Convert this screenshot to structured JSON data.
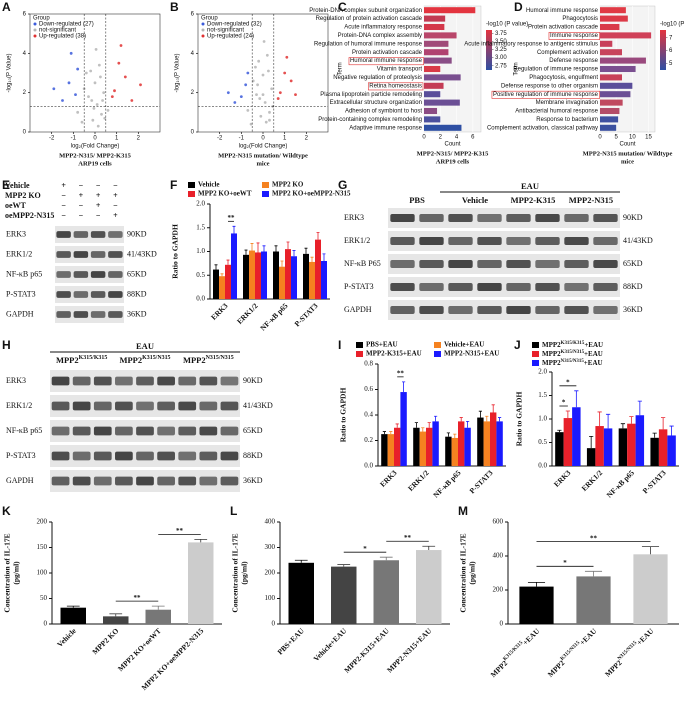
{
  "chart_data": [
    {
      "panel": "A",
      "type": "scatter",
      "caption": [
        "MPP2-N315/ MPP2-K315",
        "ARP19 cells"
      ],
      "xlabel": "log₂(Fold Change)",
      "ylabel": "-log₁₀(P Value)",
      "legend_title": "Group",
      "xlim": [
        -3,
        3
      ],
      "xticks": [
        -2,
        -1,
        0,
        1,
        2
      ],
      "ylim": [
        0,
        6
      ],
      "yticks": [
        0,
        2,
        4,
        6
      ],
      "thresholds": {
        "x": [
          -0.5,
          0.5
        ],
        "y": 1.3
      },
      "series": [
        {
          "name": "Down-regulated (27)",
          "color": "#3b5bdb",
          "x": [
            -1.2,
            -0.9,
            -1.5,
            -0.8,
            -1.1,
            -1.9
          ],
          "y": [
            2.5,
            1.9,
            1.6,
            3.2,
            4.0,
            2.2
          ]
        },
        {
          "name": "not-significant",
          "color": "#b5b5b5",
          "x": [
            -0.8,
            -0.5,
            -0.3,
            -0.2,
            -0.1,
            0,
            0.1,
            0.2,
            0.3,
            0.4,
            0.6,
            -0.6,
            0.05,
            -0.15,
            0.25,
            0.45,
            -0.4,
            0.15,
            -0.05,
            0.35
          ],
          "y": [
            1.0,
            2.2,
            1.8,
            3.1,
            0.6,
            2.5,
            1.4,
            3.4,
            0.9,
            2.0,
            1.1,
            0.5,
            4.2,
            1.6,
            2.8,
            0.7,
            3.0,
            0.3,
            1.2,
            1.6
          ]
        },
        {
          "name": "Up-regulated (38)",
          "color": "#e03131",
          "x": [
            0.9,
            1.1,
            1.4,
            0.8,
            1.7,
            1.2,
            2.1
          ],
          "y": [
            2.1,
            3.5,
            2.8,
            1.8,
            1.6,
            4.4,
            2.4
          ]
        }
      ]
    },
    {
      "panel": "B",
      "type": "scatter",
      "caption": [
        "MPP2-N315 mutation/ Wildtype",
        "mice"
      ],
      "xlabel": "log₂(Fold Change)",
      "ylabel": "-log₁₀(P Value)",
      "legend_title": "Group",
      "xlim": [
        -3,
        3
      ],
      "xticks": [
        -2,
        -1,
        0,
        1,
        2
      ],
      "ylim": [
        0,
        6
      ],
      "yticks": [
        0,
        2,
        4,
        6
      ],
      "thresholds": {
        "x": [
          -0.5,
          0.5
        ],
        "y": 1.3
      },
      "series": [
        {
          "name": "Down-regulated (32)",
          "color": "#3b5bdb",
          "x": [
            -1.0,
            -0.8,
            -1.3,
            -0.7,
            -1.6
          ],
          "y": [
            1.8,
            2.4,
            1.5,
            3.0,
            2.0
          ]
        },
        {
          "name": "not-significant",
          "color": "#b5b5b5",
          "x": [
            -0.7,
            -0.45,
            -0.3,
            -0.2,
            -0.1,
            0,
            0.1,
            0.2,
            0.3,
            0.4,
            -0.55,
            0.05,
            -0.15,
            0.25,
            -0.35,
            0.15,
            0.45,
            -0.25,
            0.0,
            0.3
          ],
          "y": [
            1.1,
            2.6,
            1.9,
            3.6,
            0.8,
            2.9,
            1.5,
            3.9,
            1.0,
            2.2,
            0.4,
            4.6,
            1.7,
            3.1,
            3.3,
            0.5,
            1.3,
            2.4,
            1.9,
            0.6
          ]
        },
        {
          "name": "Up-regulated (24)",
          "color": "#e03131",
          "x": [
            0.8,
            1.0,
            1.3,
            0.7,
            1.5,
            1.1
          ],
          "y": [
            2.0,
            3.0,
            2.6,
            1.7,
            1.9,
            3.8
          ]
        }
      ]
    },
    {
      "panel": "C",
      "type": "barh",
      "caption": [
        "MPP2-N315/ MPP2-K315",
        "ARP19 cells"
      ],
      "xlabel": "Count",
      "ylabel": "Term",
      "xlim": [
        0,
        7
      ],
      "xticks": [
        0,
        2,
        4,
        6
      ],
      "categories": [
        "Protein-DNA complex subunit organization",
        "Regulation of protein activation cascade",
        "Acute inflammatory response",
        "Protein-DNA complex assembly",
        "Regulation of humoral immune response",
        "Protein activation cascade",
        "Humoral immune response",
        "Vitamin transport",
        "Negative regulation of proteolysis",
        "Retina homeostasis",
        "Plasma lipoprotein particle remodeling",
        "Extracellular structure organization",
        "Adhesion of symbiont to host",
        "Protein-containing complex remodeling",
        "Adaptive immune response"
      ],
      "values": [
        6.3,
        2.6,
        2.5,
        4.0,
        3.0,
        3.0,
        3.4,
        2.0,
        4.5,
        2.4,
        2.0,
        4.4,
        1.6,
        2.0,
        4.6
      ],
      "colors": [
        "#e3343f",
        "#c23a52",
        "#d4374a",
        "#b9466a",
        "#a04a78",
        "#b04270",
        "#8a4d86",
        "#d93a47",
        "#7a4f90",
        "#c43c55",
        "#5a4e9a",
        "#6b4f95",
        "#8c4c84",
        "#4c509e",
        "#2e4fa3"
      ],
      "highlight": [
        6,
        9
      ],
      "colorbar": {
        "title": "-log10 (P value)",
        "clim": [
          2.62,
          3.85
        ],
        "colors": [
          "#2e4fa3",
          "#e3343f"
        ],
        "ticks": [
          {
            "value": 3.75,
            "label": "3.75"
          },
          {
            "value": 3.5,
            "label": "3.50"
          },
          3.25,
          {
            "value": 3,
            "label": "3.00"
          },
          2.75
        ]
      }
    },
    {
      "panel": "D",
      "type": "barh",
      "caption": [
        "MPP2-N315 mutation/ Wildtype",
        "mice"
      ],
      "xlabel": "Count",
      "ylabel": "Term",
      "xlim": [
        0,
        17
      ],
      "xticks": [
        0,
        5,
        10,
        15
      ],
      "categories": [
        "Humoral immune response",
        "Phagocytosis",
        "Protein activation cascade",
        "Immune response",
        "Acute inflammatory response to antigenic stimulus",
        "Complement activation",
        "Defense response",
        "Regulation of immune response",
        "Phagocytosis, engulfment",
        "Defense response to other organism",
        "Positive regulation of immune response",
        "Membrane invagination",
        "Antibacterial humoral response",
        "Response to bacterium",
        "Complement activation, classical pathway"
      ],
      "values": [
        8,
        8.6,
        6,
        15.8,
        3.8,
        6.8,
        14.2,
        11,
        6.8,
        10,
        9.4,
        7,
        6,
        5.6,
        5
      ],
      "colors": [
        "#e03a45",
        "#dc3a48",
        "#d93b4a",
        "#d04058",
        "#c8405a",
        "#c8445c",
        "#9a4a7e",
        "#7a4f90",
        "#c84058",
        "#5a4e9a",
        "#6b4f95",
        "#c04a60",
        "#b44c68",
        "#3f50a0",
        "#3b509f"
      ],
      "highlight": [
        3,
        10
      ],
      "colorbar": {
        "title": "-log10 (P value)",
        "clim": [
          4.5,
          7.6
        ],
        "colors": [
          "#2e4fa3",
          "#e3343f"
        ],
        "ticks": [
          7,
          6,
          5
        ]
      }
    },
    {
      "panel": "F",
      "type": "bar",
      "ylabel": "Ratio to GAPDH",
      "legend_columns": 2,
      "categories": [
        "ERK3",
        "ERK1/2",
        "NF-κB p65",
        "P-STAT3"
      ],
      "ylim": [
        0,
        2
      ],
      "yticks": [
        {
          "value": 0,
          "label": "0.0"
        },
        0.5,
        {
          "value": 1,
          "label": "1.0"
        },
        1.5,
        {
          "value": 2,
          "label": "2.0"
        }
      ],
      "series": [
        {
          "name": "Vehicle",
          "color": "#000000",
          "values": [
            0.62,
            0.93,
            1.0,
            0.95
          ],
          "errors": [
            0.1,
            0.1,
            0.12,
            0.12
          ]
        },
        {
          "name": "MPP2 KO",
          "color": "#f58220",
          "values": [
            0.48,
            1.02,
            0.68,
            0.78
          ],
          "errors": [
            0.05,
            0.15,
            0.12,
            0.1
          ]
        },
        {
          "name": "MPP2 KO+oeWT",
          "color": "#e8202a",
          "values": [
            0.72,
            0.98,
            1.05,
            1.25
          ],
          "errors": [
            0.1,
            0.2,
            0.15,
            0.15
          ]
        },
        {
          "name": "MPP2 KO+oeMPP2-N315",
          "color": "#1a1aff",
          "values": [
            1.38,
            1.0,
            0.9,
            0.8
          ],
          "errors": [
            0.15,
            0.12,
            0.12,
            0.15
          ]
        }
      ],
      "annotations": [
        {
          "text": "**",
          "category": 0,
          "between": [
            2,
            3
          ]
        }
      ]
    },
    {
      "panel": "I",
      "type": "bar",
      "ylabel": "Ratio to GAPDH",
      "legend_columns": 2,
      "categories": [
        "ERK3",
        "ERK1/2",
        "NF-κB p65",
        "P-STAT3"
      ],
      "ylim": [
        0,
        0.8
      ],
      "yticks": [
        {
          "value": 0,
          "label": "0.0"
        },
        0.2,
        0.4,
        0.6,
        0.8
      ],
      "series": [
        {
          "name": "PBS+EAU",
          "color": "#000000",
          "values": [
            0.25,
            0.3,
            0.23,
            0.38
          ],
          "errors": [
            0.02,
            0.04,
            0.03,
            0.05
          ]
        },
        {
          "name": "Vehicle+EAU",
          "color": "#f58220",
          "values": [
            0.25,
            0.27,
            0.22,
            0.35
          ],
          "errors": [
            0.02,
            0.03,
            0.03,
            0.04
          ]
        },
        {
          "name": "MPP2-K315+EAU",
          "color": "#e8202a",
          "values": [
            0.3,
            0.3,
            0.35,
            0.42
          ],
          "errors": [
            0.03,
            0.04,
            0.03,
            0.06
          ]
        },
        {
          "name": "MPP2-N315+EAU",
          "color": "#1a1aff",
          "values": [
            0.58,
            0.35,
            0.3,
            0.35
          ],
          "errors": [
            0.08,
            0.04,
            0.05,
            0.03
          ]
        }
      ],
      "annotations": [
        {
          "text": "**",
          "category": 0,
          "between": [
            2,
            3
          ]
        }
      ]
    },
    {
      "panel": "J",
      "type": "bar",
      "ylabel": "Ratio to GAPDH",
      "legend_columns": 1,
      "categories": [
        "ERK3",
        "ERK1/2",
        "NF-κB p65",
        "P-STAT3"
      ],
      "ylim": [
        0,
        2
      ],
      "yticks": [
        {
          "value": 0,
          "label": "0.0"
        },
        0.5,
        {
          "value": 1,
          "label": "1.0"
        },
        1.5,
        {
          "value": 2,
          "label": "2.0"
        }
      ],
      "series": [
        {
          "name": {
            "base": "MPP2",
            "sup": "K315/K315",
            "tail": "+EAU"
          },
          "color": "#000000",
          "values": [
            0.72,
            0.38,
            0.8,
            0.6
          ],
          "errors": [
            0.04,
            0.25,
            0.1,
            0.1
          ]
        },
        {
          "name": {
            "base": "MPP2",
            "sup": "K315/N315",
            "tail": "+EAU"
          },
          "color": "#e8202a",
          "values": [
            1.02,
            0.85,
            0.9,
            0.78
          ],
          "errors": [
            0.15,
            0.3,
            0.15,
            0.25
          ]
        },
        {
          "name": {
            "base": "MPP2",
            "sup": "N315/N315",
            "tail": "+EAU"
          },
          "color": "#1a1aff",
          "values": [
            1.25,
            0.8,
            1.08,
            0.65
          ],
          "errors": [
            0.35,
            0.3,
            0.3,
            0.2
          ]
        }
      ],
      "annotations": [
        {
          "text": "*",
          "category": 0,
          "between": [
            0,
            1
          ]
        },
        {
          "text": "*",
          "category": 0,
          "between": [
            0,
            2
          ]
        }
      ]
    },
    {
      "panel": "K",
      "type": "bar",
      "ylabel": [
        "Concentration of IL-17E",
        "(pg/ml)"
      ],
      "categories": [
        "Vehicle",
        "MPP2 KO",
        "MPP2 KO+oeWT",
        "MPP2 KO+oeMPP2-N315"
      ],
      "values": [
        32,
        15,
        28,
        160
      ],
      "errors": [
        3,
        5,
        7,
        6
      ],
      "colors": [
        "#000000",
        "#444444",
        "#777777",
        "#cccccc"
      ],
      "ylim": [
        0,
        200
      ],
      "yticks": [
        0,
        50,
        100,
        150,
        200
      ],
      "annotations": [
        {
          "text": "**",
          "between": [
            1,
            2
          ]
        },
        {
          "text": "**",
          "between": [
            2,
            3
          ]
        }
      ]
    },
    {
      "panel": "L",
      "type": "bar",
      "ylabel": [
        "Concentration of IL-17E",
        "(pg/ml)"
      ],
      "categories": [
        "PBS+EAU",
        "Vehicle+EAU",
        "MPP2-K315+EAU",
        "MPP2-N315+EAU"
      ],
      "values": [
        240,
        225,
        250,
        290
      ],
      "errors": [
        10,
        8,
        12,
        15
      ],
      "colors": [
        "#000000",
        "#444444",
        "#777777",
        "#cccccc"
      ],
      "ylim": [
        0,
        400
      ],
      "yticks": [
        0,
        100,
        200,
        300,
        400
      ],
      "annotations": [
        {
          "text": "*",
          "between": [
            1,
            2
          ]
        },
        {
          "text": "**",
          "between": [
            2,
            3
          ]
        }
      ]
    },
    {
      "panel": "M",
      "type": "bar",
      "ylabel": [
        "Concentration of IL-17E",
        "(pg/ml)"
      ],
      "categories": [
        {
          "base": "MPP2",
          "sup": "K315/K315",
          "tail": "+EAU"
        },
        {
          "base": "MPP2",
          "sup": "K315/N315",
          "tail": "+EAU"
        },
        {
          "base": "MPP2",
          "sup": "N315/N315",
          "tail": "+EAU"
        }
      ],
      "values": [
        220,
        280,
        410
      ],
      "errors": [
        25,
        30,
        45
      ],
      "colors": [
        "#000000",
        "#777777",
        "#cccccc"
      ],
      "ylim": [
        0,
        600
      ],
      "yticks": [
        0,
        200,
        400,
        600
      ],
      "annotations": [
        {
          "text": "*",
          "between": [
            0,
            1
          ]
        },
        {
          "text": "**",
          "between": [
            0,
            2
          ]
        }
      ]
    }
  ],
  "blots": [
    {
      "panel": "E",
      "lanes": 4,
      "conditions": [
        {
          "name": "Vehicle",
          "signs": [
            "+",
            "−",
            "−",
            "−"
          ]
        },
        {
          "name": "MPP2 KO",
          "signs": [
            "−",
            "+",
            "+",
            "+"
          ]
        },
        {
          "name": "oeWT",
          "signs": [
            "−",
            "−",
            "+",
            "−"
          ]
        },
        {
          "name": "oeMPP2-N315",
          "signs": [
            "−",
            "−",
            "−",
            "+"
          ]
        }
      ],
      "rows": [
        {
          "protein": "ERK3",
          "size": "90KD"
        },
        {
          "protein": "ERK1/2",
          "size": "41/43KD"
        },
        {
          "protein": "NF-κB p65",
          "size": "65KD"
        },
        {
          "protein": "P-STAT3",
          "size": "88KD"
        },
        {
          "protein": "GAPDH",
          "size": "36KD"
        }
      ]
    },
    {
      "panel": "G",
      "lanes": 8,
      "header": "EAU",
      "groups": [
        "PBS",
        "Vehicle",
        "MPP2-K315",
        "MPP2-N315"
      ],
      "rows": [
        {
          "protein": "ERK3",
          "size": "90KD"
        },
        {
          "protein": "ERK1/2",
          "size": "41/43KD"
        },
        {
          "protein": "NF-κB P65",
          "size": "65KD"
        },
        {
          "protein": "P-STAT3",
          "size": "88KD"
        },
        {
          "protein": "GAPDH",
          "size": "36KD"
        }
      ]
    },
    {
      "panel": "H",
      "lanes": 9,
      "header": "EAU",
      "groups": [
        {
          "base": "MPP2",
          "sup": "K315/K315"
        },
        {
          "base": "MPP2",
          "sup": "K315/N315"
        },
        {
          "base": "MPP2",
          "sup": "N315/N315"
        }
      ],
      "rows": [
        {
          "protein": "ERK3",
          "size": "90KD"
        },
        {
          "protein": "ERK1/2",
          "size": "41/43KD"
        },
        {
          "protein": "NF-κB p65",
          "size": "65KD"
        },
        {
          "protein": "P-STAT3",
          "size": "88KD"
        },
        {
          "protein": "GAPDH",
          "size": "36KD"
        }
      ]
    }
  ]
}
